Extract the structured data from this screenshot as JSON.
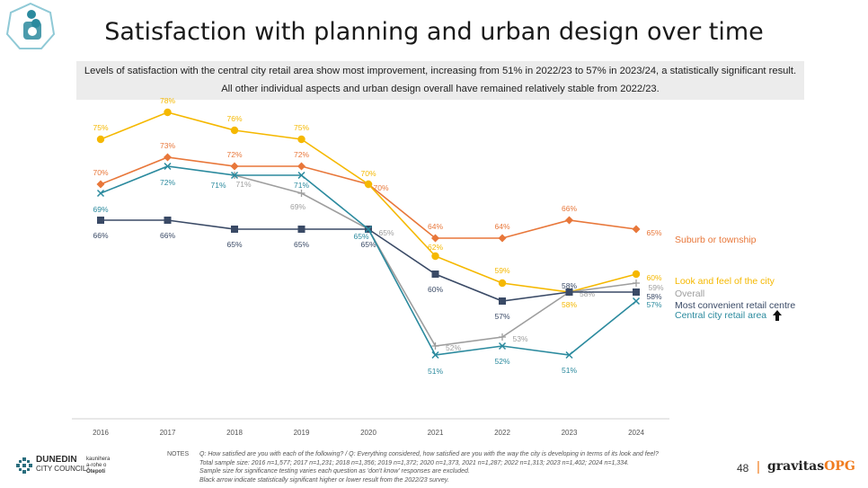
{
  "header": {
    "title": "Satisfaction with planning and urban design over time",
    "summary_line1": "Levels of satisfaction with the central city retail area show most improvement, increasing from 51% in 2022/23 to 57% in 2023/24, a statistically significant result.",
    "summary_line2": "All other individual aspects and urban design overall have remained relatively stable from 2022/23."
  },
  "chart_data": {
    "type": "line",
    "x": [
      "2016",
      "2017",
      "2018",
      "2019",
      "2020",
      "2021",
      "2022",
      "2023",
      "2024"
    ],
    "ylim": [
      45,
      82
    ],
    "grid": false,
    "legend": "right, labels at series ends",
    "series": [
      {
        "name": "Suburb or township",
        "color": "#E8773A",
        "marker": "diamond",
        "values": [
          70,
          73,
          72,
          72,
          70,
          64,
          64,
          66,
          65
        ],
        "labels": [
          "70%",
          "73%",
          "72%",
          "72%",
          "70%",
          "64%",
          "64%",
          "66%",
          "65%"
        ]
      },
      {
        "name": "Look and feel of the city",
        "color": "#F5B800",
        "marker": "circle",
        "values": [
          75,
          78,
          76,
          75,
          70,
          62,
          59,
          58,
          60
        ],
        "labels": [
          "75%",
          "78%",
          "76%",
          "75%",
          "70%",
          "62%",
          "59%",
          "58%",
          "60%"
        ]
      },
      {
        "name": "Overall",
        "color": "#9E9E9E",
        "marker": "plus",
        "values": [
          null,
          null,
          71,
          69,
          65,
          52,
          53,
          58,
          59
        ],
        "labels": [
          null,
          null,
          "71%",
          "69%",
          "65%",
          "52%",
          "53%",
          "58%",
          "59%"
        ]
      },
      {
        "name": "Most convenient retail centre",
        "color": "#3A4A66",
        "marker": "square",
        "values": [
          66,
          66,
          65,
          65,
          65,
          60,
          57,
          58,
          58
        ],
        "labels": [
          "66%",
          "66%",
          "65%",
          "65%",
          "65%",
          "60%",
          "57%",
          "58%",
          "58%"
        ]
      },
      {
        "name": "Central city retail area",
        "color": "#2B8A9E",
        "marker": "cross",
        "values": [
          69,
          72,
          71,
          71,
          65,
          51,
          52,
          51,
          57
        ],
        "labels": [
          "69%",
          "72%",
          "71%",
          "71%",
          "65%",
          "51%",
          "52%",
          "51%",
          "57%"
        ]
      }
    ]
  },
  "notes": {
    "label": "NOTES",
    "lines": [
      "Q: How satisfied are you with each of the following?   /   Q: Everything considered, how satisfied are you with the way the city is developing in terms of its look and feel?",
      "Total sample size: 2016 n=1,577; 2017 n=1,231; 2018 n=1,356; 2019 n=1,372; 2020 n=1,373, 2021 n=1,287; 2022 n=1,313; 2023 n=1,402; 2024 n=1,334.",
      "Sample size for significance testing varies each question as 'don't know' responses are excluded.",
      "Black arrow indicate statistically significant higher or lower result from the 2022/23 survey."
    ]
  },
  "footer": {
    "council_line1": "DUNEDIN",
    "council_line2": "CITY COUNCIL",
    "maori_line1": "kaunihera",
    "maori_line2": "a-rohe o",
    "maori_line3": "Ōtepoti",
    "page_number": "48",
    "separator": "|",
    "brand_main": "gravitas",
    "brand_accent": "OPG"
  }
}
